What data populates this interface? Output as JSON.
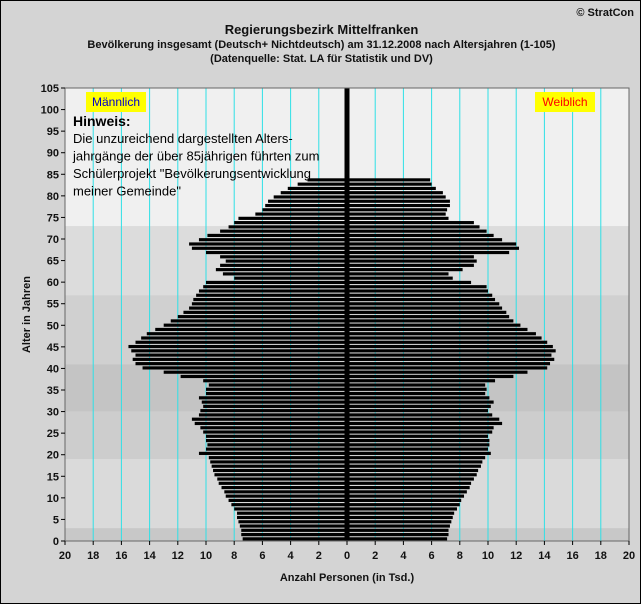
{
  "header": {
    "copyright": "© StratCon",
    "title": "Regierungsbezirk Mittelfranken",
    "subtitle": "Bevölkerung  insgesamt (Deutsch+ Nichtdeutsch) am 31.12.2008 nach Altersjahren (1-105)",
    "source": "(Datenquelle: Stat. LA für Statistik und DV)"
  },
  "colors": {
    "bar": "#000000",
    "grid": "#2ee0e6",
    "label_bg": "#ffff00",
    "male_text": "#0000cc",
    "female_text": "#ff0000",
    "plot_band_light": "#f0f0f0",
    "plot_band_dark": "#d8d8d8"
  },
  "chart_data": {
    "type": "bar",
    "orientation": "horizontal-pyramid",
    "xlabel": "Anzahl Personen (in Tsd.)",
    "ylabel": "Alter in Jahren",
    "xlim": [
      -20,
      20
    ],
    "ylim": [
      0,
      105
    ],
    "x_ticks": [
      -20,
      -18,
      -16,
      -14,
      -12,
      -10,
      -8,
      -6,
      -4,
      -2,
      0,
      2,
      4,
      6,
      8,
      10,
      12,
      14,
      16,
      18,
      20
    ],
    "x_tick_labels": [
      "20",
      "18",
      "16",
      "14",
      "12",
      "10",
      "8",
      "6",
      "4",
      "2",
      "0",
      "2",
      "4",
      "6",
      "8",
      "10",
      "12",
      "14",
      "16",
      "18",
      "20"
    ],
    "y_ticks": [
      0,
      5,
      10,
      15,
      20,
      25,
      30,
      35,
      40,
      45,
      50,
      55,
      60,
      65,
      70,
      75,
      80,
      85,
      90,
      95,
      100,
      105
    ],
    "grid": true,
    "ages": [
      0,
      1,
      2,
      3,
      4,
      5,
      6,
      7,
      8,
      9,
      10,
      11,
      12,
      13,
      14,
      15,
      16,
      17,
      18,
      19,
      20,
      21,
      22,
      23,
      24,
      25,
      26,
      27,
      28,
      29,
      30,
      31,
      32,
      33,
      34,
      35,
      36,
      37,
      38,
      39,
      40,
      41,
      42,
      43,
      44,
      45,
      46,
      47,
      48,
      49,
      50,
      51,
      52,
      53,
      54,
      55,
      56,
      57,
      58,
      59,
      60,
      61,
      62,
      63,
      64,
      65,
      66,
      67,
      68,
      69,
      70,
      71,
      72,
      73,
      74,
      75,
      76,
      77,
      78,
      79,
      80,
      81,
      82,
      83,
      84,
      85,
      86,
      87,
      88,
      89,
      90,
      91,
      92,
      93,
      94,
      95,
      96,
      97,
      98,
      99,
      100,
      101,
      102,
      103,
      104,
      105
    ],
    "series": [
      {
        "name": "Männlich",
        "values": [
          7.4,
          7.5,
          7.5,
          7.6,
          7.7,
          7.8,
          7.8,
          8.0,
          8.2,
          8.4,
          8.6,
          8.7,
          8.9,
          9.1,
          9.2,
          9.4,
          9.5,
          9.6,
          9.7,
          9.8,
          10.5,
          10.0,
          9.9,
          10.0,
          10.0,
          10.2,
          10.4,
          10.8,
          11.0,
          10.5,
          10.4,
          10.2,
          10.3,
          10.5,
          10.0,
          10.0,
          9.8,
          10.2,
          11.8,
          13.0,
          14.5,
          15.0,
          15.2,
          15.0,
          15.3,
          15.5,
          15.0,
          14.6,
          14.2,
          13.6,
          13.0,
          12.5,
          12.0,
          11.6,
          11.2,
          11.0,
          10.9,
          10.7,
          10.5,
          10.2,
          10.0,
          8.0,
          8.8,
          9.3,
          9.0,
          8.6,
          9.0,
          10.0,
          11.0,
          11.2,
          10.5,
          9.9,
          9.0,
          8.4,
          8.0,
          7.7,
          6.5,
          6.0,
          5.8,
          5.6,
          5.2,
          4.7,
          4.2,
          3.5,
          2.8,
          0,
          0,
          0,
          0,
          0,
          0,
          0,
          0,
          0,
          0,
          0,
          0,
          0,
          0,
          0,
          0,
          0,
          0,
          0,
          0,
          0
        ]
      },
      {
        "name": "Weiblich",
        "values": [
          7.1,
          7.2,
          7.2,
          7.3,
          7.4,
          7.5,
          7.6,
          7.8,
          8.0,
          8.1,
          8.3,
          8.5,
          8.7,
          8.8,
          9.0,
          9.2,
          9.3,
          9.5,
          9.6,
          9.8,
          10.2,
          10.0,
          10.1,
          10.1,
          10.0,
          10.3,
          10.4,
          11.0,
          10.8,
          10.3,
          10.0,
          10.2,
          10.4,
          10.1,
          9.8,
          9.9,
          9.8,
          10.5,
          11.8,
          12.8,
          14.2,
          14.4,
          14.7,
          14.5,
          14.8,
          14.6,
          14.2,
          13.8,
          13.4,
          12.8,
          12.3,
          11.8,
          11.5,
          11.3,
          11.0,
          10.8,
          10.5,
          10.3,
          10.0,
          9.9,
          8.8,
          7.5,
          7.2,
          8.2,
          9.0,
          9.2,
          9.0,
          11.5,
          12.2,
          12.0,
          11.0,
          10.4,
          9.9,
          9.4,
          9.0,
          7.2,
          7.0,
          7.1,
          7.3,
          7.3,
          7.0,
          6.8,
          6.3,
          6.0,
          5.9,
          0,
          0,
          0,
          0,
          0,
          0,
          0,
          0,
          0,
          0,
          0,
          0,
          0,
          0,
          0,
          0,
          0,
          0,
          0,
          0,
          0
        ]
      }
    ],
    "annotations": {
      "male_label": "Männlich",
      "female_label": "Weiblich",
      "note_title": "Hinweis:",
      "note_lines": [
        "Die unzureichend dargestellten Alters-",
        "jahrgänge der über 85jährigen führten zum",
        "Schülerprojekt \"Bevölkerungsentwicklung",
        "meiner Gemeinde\""
      ]
    }
  }
}
